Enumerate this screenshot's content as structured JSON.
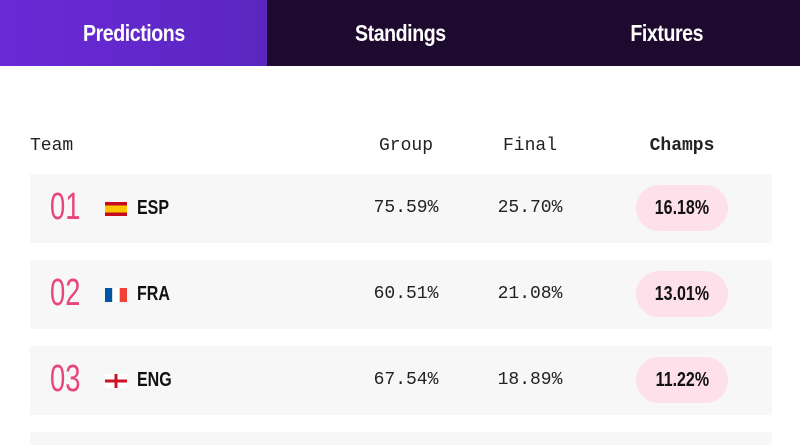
{
  "tabs": [
    "Predictions",
    "Standings",
    "Fixtures"
  ],
  "table": {
    "columns": [
      "Team",
      "Group",
      "Final",
      "Champs"
    ],
    "rows": [
      {
        "rank": "01",
        "team": "ESP",
        "group": "75.59%",
        "final": "25.70%",
        "champs": "16.18%"
      },
      {
        "rank": "02",
        "team": "FRA",
        "group": "60.51%",
        "final": "21.08%",
        "champs": "13.01%"
      },
      {
        "rank": "03",
        "team": "ENG",
        "group": "67.54%",
        "final": "18.89%",
        "champs": "11.22%"
      }
    ]
  }
}
